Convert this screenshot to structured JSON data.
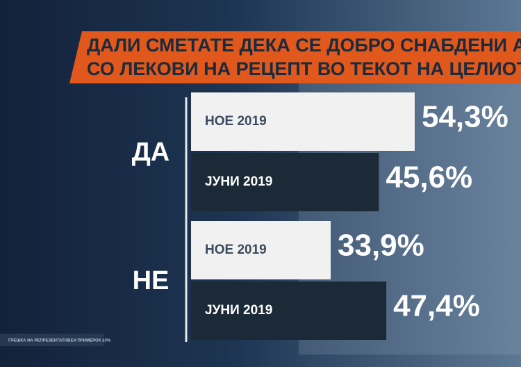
{
  "chart_data": {
    "type": "bar",
    "orientation": "horizontal",
    "title_lines": [
      "ДАЛИ СМЕТАТЕ ДЕКА СЕ ДОБРО СНАБДЕНИ АПТЕК",
      "СО ЛЕКОВИ НА РЕЦЕПТ ВО ТЕКОТ НА ЦЕЛИОТ МЕС"
    ],
    "categories": [
      "ДА",
      "НЕ"
    ],
    "series": [
      {
        "name": "НОЕ 2019",
        "color": "#f1f1f1",
        "values": [
          54.3,
          33.9
        ],
        "value_labels": [
          "54,3%",
          "33,9%"
        ]
      },
      {
        "name": "ЈУНИ 2019",
        "color": "#1c2a38",
        "values": [
          45.6,
          47.4
        ],
        "value_labels": [
          "45,6%",
          "47,4%"
        ]
      }
    ],
    "footnote": "ГРЕШКА НА РЕПРЕЗЕНТАТИВЕН ПРИМЕРОК ±3%"
  }
}
